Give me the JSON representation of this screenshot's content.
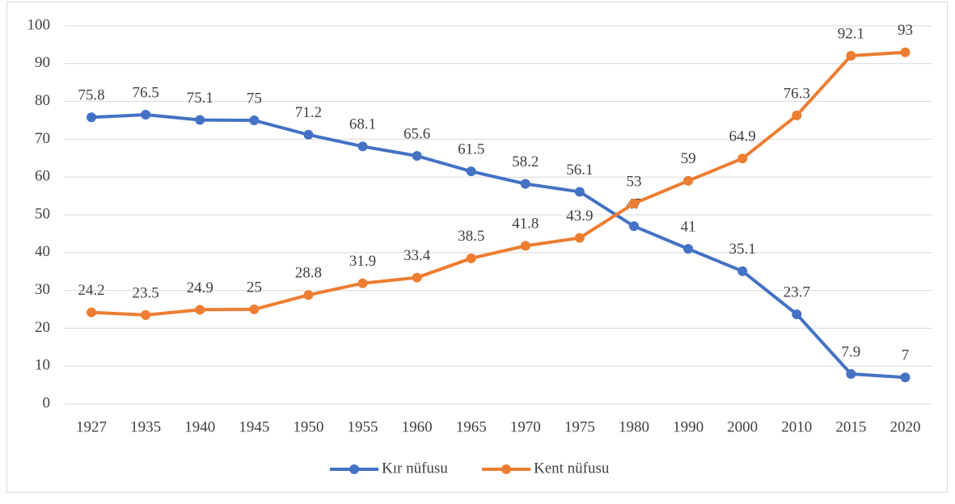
{
  "chart_data": {
    "type": "line",
    "categories": [
      "1927",
      "1935",
      "1940",
      "1945",
      "1950",
      "1955",
      "1960",
      "1965",
      "1970",
      "1975",
      "1980",
      "1990",
      "2000",
      "2010",
      "2015",
      "2020"
    ],
    "series": [
      {
        "name": "Kır nüfusu",
        "color": "#4472c4",
        "values": [
          75.8,
          76.5,
          75.1,
          75,
          71.2,
          68.1,
          65.6,
          61.5,
          58.2,
          56.1,
          47,
          41,
          35.1,
          23.7,
          7.9,
          7
        ]
      },
      {
        "name": "Kent nüfusu",
        "color": "#ed7d31",
        "values": [
          24.2,
          23.5,
          24.9,
          25,
          28.8,
          31.9,
          33.4,
          38.5,
          41.8,
          43.9,
          53,
          59,
          64.9,
          76.3,
          92.1,
          93
        ]
      }
    ],
    "ylim": [
      0,
      100
    ],
    "yticks": [
      0,
      10,
      20,
      30,
      40,
      50,
      60,
      70,
      80,
      90,
      100
    ],
    "grid": true,
    "legend": "bottom"
  }
}
